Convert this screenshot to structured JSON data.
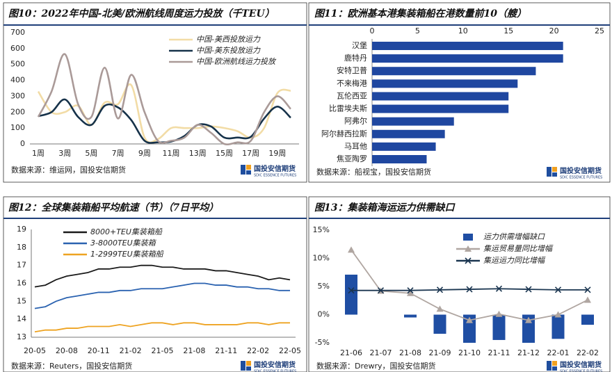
{
  "chart_data": [
    {
      "type": "line",
      "title": "图10：2022年中国-北美/欧洲航线周度运力投放（千TEU）",
      "smooth": true,
      "legend": "upper right",
      "categories": [
        "1周",
        null,
        "3周",
        null,
        "5周",
        null,
        "7周",
        null,
        "9周",
        null,
        "11周",
        null,
        "13周",
        null,
        "15周",
        null,
        "17周",
        null,
        "19周",
        null
      ],
      "series": [
        {
          "name": "中国-美西投放运力",
          "color": "#f2dca6",
          "values": [
            330,
            200,
            200,
            240,
            120,
            260,
            250,
            370,
            40,
            30,
            100,
            100,
            100,
            110,
            100,
            80,
            40,
            100,
            320,
            335
          ]
        },
        {
          "name": "中国-美东投放运力",
          "color": "#16324a",
          "values": [
            175,
            200,
            280,
            170,
            120,
            240,
            230,
            150,
            20,
            10,
            15,
            50,
            120,
            110,
            40,
            40,
            45,
            160,
            235,
            165
          ]
        },
        {
          "name": "中国-欧洲航线运力投放",
          "color": "#aa9a98",
          "values": [
            170,
            330,
            565,
            250,
            170,
            480,
            160,
            435,
            200,
            20,
            20,
            40,
            120,
            70,
            0,
            10,
            20,
            200,
            300,
            220
          ]
        }
      ],
      "ylim": [
        0,
        700
      ],
      "yticks": [
        0,
        100,
        200,
        300,
        400,
        500,
        600,
        700
      ],
      "grid": false,
      "source": "数据来源：维运网，国投安信期货",
      "logo": "国投安信期货",
      "logo_en": "SDIC ESSENCE FUTURES"
    },
    {
      "type": "bar",
      "orientation": "horizontal",
      "title": "图11：欧洲基本港集装箱船在港数量前10（艘）",
      "categories": [
        "汉堡",
        "鹿特丹",
        "安特卫普",
        "不来梅港",
        "瓦伦西亚",
        "比雷埃夫斯",
        "阿弗尔",
        "阿尔赫西拉斯",
        "马耳他",
        "焦亚陶罗"
      ],
      "values": [
        21,
        21,
        18,
        16,
        15,
        15,
        9,
        8,
        7,
        6
      ],
      "color": "#1f47a0",
      "xlim": [
        0,
        25
      ],
      "xticks": [
        0,
        5,
        10,
        15,
        20,
        25
      ],
      "grid": false,
      "source": "数据来源：船视宝，国投安信期货",
      "logo": "国投安信期货",
      "logo_en": "SDIC ESSENCE FUTURES"
    },
    {
      "type": "line",
      "title": "图12：全球集装箱船平均航速（节）（7日平均）",
      "smooth": false,
      "legend": "upper left",
      "categories": [
        "20-05",
        null,
        null,
        "20-08",
        null,
        null,
        "20-11",
        null,
        null,
        "21-02",
        null,
        null,
        "21-05",
        null,
        null,
        "21-08",
        null,
        null,
        "21-11",
        null,
        null,
        "22-02",
        null,
        null,
        "22-05"
      ],
      "series": [
        {
          "name": "8000+TEU集装箱船",
          "color": "#1a1a1a",
          "values": [
            15.8,
            15.9,
            16.2,
            16.4,
            16.5,
            16.6,
            16.8,
            16.8,
            16.9,
            16.9,
            17.0,
            17.0,
            16.9,
            16.9,
            16.8,
            16.8,
            16.8,
            16.7,
            16.7,
            16.6,
            16.5,
            16.4,
            16.2,
            16.3,
            16.2
          ]
        },
        {
          "name": "3-8000TEU集装箱",
          "color": "#2a62b0",
          "values": [
            14.6,
            14.7,
            15.0,
            15.2,
            15.3,
            15.4,
            15.5,
            15.5,
            15.6,
            15.6,
            15.7,
            15.7,
            15.7,
            15.8,
            15.9,
            16.0,
            16.0,
            15.9,
            15.9,
            15.8,
            15.8,
            15.7,
            15.7,
            15.6,
            15.6
          ]
        },
        {
          "name": "1-2999TEU集装箱船",
          "color": "#eea321",
          "values": [
            13.3,
            13.4,
            13.4,
            13.5,
            13.5,
            13.6,
            13.6,
            13.6,
            13.7,
            13.6,
            13.7,
            13.8,
            13.8,
            13.7,
            13.8,
            13.8,
            13.7,
            13.7,
            13.7,
            13.7,
            13.8,
            13.8,
            13.7,
            13.8,
            13.8
          ]
        }
      ],
      "ylim": [
        13,
        19
      ],
      "yticks": [
        13,
        14,
        15,
        16,
        17,
        18,
        19
      ],
      "grid": false,
      "source": "数据来源：Reuters，国投安信期货",
      "logo": "国投安信期货",
      "logo_en": "SDIC ESSENCE FUTURES"
    },
    {
      "type": "combo",
      "title": "图13：集装箱海运运力供需缺口",
      "legend": "upper right",
      "categories": [
        "21-06",
        "21-07",
        "21-08",
        "21-09",
        "21-10",
        "21-11",
        "21-12",
        "22-01",
        "22-02"
      ],
      "series": [
        {
          "name": "运力供需增幅缺口",
          "type": "bar",
          "color": "#1f4ea3",
          "values": [
            7.1,
            0,
            -0.5,
            -3.4,
            -5.0,
            -4.5,
            -5.0,
            -4.3,
            -1.8
          ]
        },
        {
          "name": "集运贸易量同比增幅",
          "type": "line",
          "marker": "triangle",
          "color": "#b0a6a1",
          "values": [
            11.5,
            4.2,
            3.8,
            1.0,
            -1.0,
            0.1,
            -1.0,
            0,
            2.6
          ]
        },
        {
          "name": "集运运力同比增幅",
          "type": "line",
          "marker": "x",
          "color": "#1a3550",
          "values": [
            4.3,
            4.3,
            4.3,
            4.4,
            4.5,
            4.6,
            4.5,
            4.4,
            4.4
          ]
        }
      ],
      "ylim": [
        -5,
        15
      ],
      "yticks": [
        {
          "value": -5,
          "label": "-5%"
        },
        {
          "value": 0,
          "label": "0%"
        },
        {
          "value": 5,
          "label": "5%"
        },
        {
          "value": 10,
          "label": "10%"
        },
        {
          "value": 15,
          "label": "15%"
        }
      ],
      "grid": false,
      "source": "数据来源：Drewry，国投安信期货",
      "logo": "国投安信期货",
      "logo_en": "SDIC ESSENCE FUTURES"
    }
  ]
}
